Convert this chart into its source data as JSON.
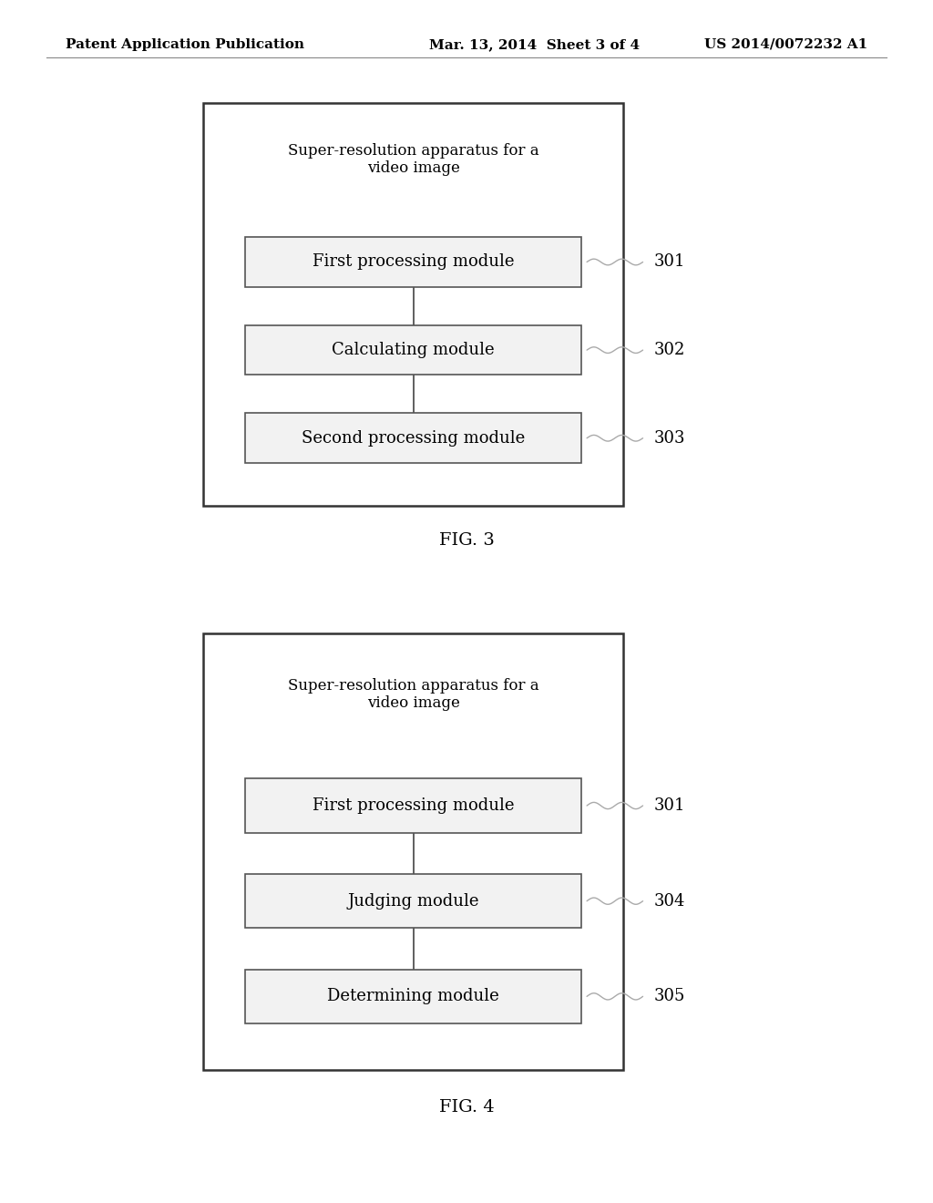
{
  "background_color": "#ffffff",
  "header_left": "Patent Application Publication",
  "header_mid": "Mar. 13, 2014  Sheet 3 of 4",
  "header_right": "US 2014/0072232 A1",
  "fig3": {
    "title": "Super-resolution apparatus for a\nvideo image",
    "modules": [
      {
        "label": "First processing module",
        "ref": "301"
      },
      {
        "label": "Calculating module",
        "ref": "302"
      },
      {
        "label": "Second processing module",
        "ref": "303"
      }
    ],
    "fig_label": "FIG. 3"
  },
  "fig4": {
    "title": "Super-resolution apparatus for a\nvideo image",
    "modules": [
      {
        "label": "First processing module",
        "ref": "301"
      },
      {
        "label": "Judging module",
        "ref": "304"
      },
      {
        "label": "Determining module",
        "ref": "305"
      }
    ],
    "fig_label": "FIG. 4"
  },
  "font_size_module": 13,
  "font_size_title": 12,
  "font_size_ref": 13,
  "font_size_header": 11,
  "font_size_figlabel": 14
}
